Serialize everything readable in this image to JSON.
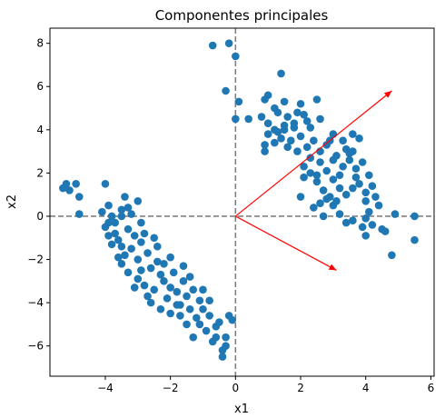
{
  "chart_data": {
    "type": "scatter",
    "title": "Componentes principales",
    "xlabel": "x1",
    "ylabel": "x2",
    "xlim": [
      -5.7,
      6.1
    ],
    "ylim": [
      -7.4,
      8.7
    ],
    "xticks": [
      -4,
      -2,
      0,
      2,
      4,
      6
    ],
    "yticks": [
      -6,
      -4,
      -2,
      0,
      2,
      4,
      6,
      8
    ],
    "grid": false,
    "point_color": "#1f77b4",
    "arrow_color": "#ff0000",
    "reference_line_color": "#808080",
    "reference_lines": {
      "x": 0,
      "y": 0
    },
    "arrows": [
      {
        "from": [
          0,
          0
        ],
        "to": [
          4.8,
          5.8
        ]
      },
      {
        "from": [
          0,
          0
        ],
        "to": [
          3.1,
          -2.5
        ]
      }
    ],
    "points": [
      [
        -5.3,
        1.3
      ],
      [
        -5.2,
        1.5
      ],
      [
        -5.1,
        1.2
      ],
      [
        -4.9,
        1.5
      ],
      [
        -4.8,
        0.9
      ],
      [
        -4.8,
        0.1
      ],
      [
        -4.0,
        1.5
      ],
      [
        -3.9,
        0.5
      ],
      [
        -3.8,
        0.0
      ],
      [
        -3.9,
        -0.3
      ],
      [
        -4.0,
        -0.5
      ],
      [
        -3.7,
        -0.8
      ],
      [
        -3.6,
        -1.1
      ],
      [
        -3.8,
        -1.3
      ],
      [
        -3.5,
        -1.4
      ],
      [
        -3.7,
        -0.3
      ],
      [
        -3.4,
        0.9
      ],
      [
        -3.3,
        0.4
      ],
      [
        -3.2,
        0.1
      ],
      [
        -3.5,
        0.3
      ],
      [
        -3.3,
        -0.6
      ],
      [
        -3.1,
        -0.9
      ],
      [
        -3.4,
        -1.8
      ],
      [
        -3.5,
        -2.2
      ],
      [
        -3.3,
        -2.6
      ],
      [
        -3.0,
        -2.9
      ],
      [
        -3.2,
        -1.5
      ],
      [
        -3.0,
        -2.0
      ],
      [
        -2.9,
        -1.2
      ],
      [
        -2.9,
        -0.3
      ],
      [
        -2.8,
        -0.8
      ],
      [
        -2.7,
        -1.7
      ],
      [
        -2.6,
        -2.4
      ],
      [
        -2.8,
        -3.2
      ],
      [
        -2.5,
        -3.4
      ],
      [
        -2.4,
        -2.1
      ],
      [
        -2.4,
        -1.4
      ],
      [
        -2.3,
        -2.7
      ],
      [
        -2.2,
        -3.0
      ],
      [
        -2.1,
        -3.8
      ],
      [
        -2.0,
        -3.3
      ],
      [
        -1.9,
        -2.6
      ],
      [
        -2.0,
        -1.9
      ],
      [
        -1.8,
        -3.5
      ],
      [
        -1.7,
        -4.1
      ],
      [
        -1.6,
        -3.0
      ],
      [
        -1.6,
        -2.3
      ],
      [
        -1.5,
        -3.7
      ],
      [
        -1.4,
        -4.3
      ],
      [
        -1.3,
        -3.4
      ],
      [
        -1.2,
        -4.7
      ],
      [
        -1.1,
        -3.9
      ],
      [
        -1.0,
        -4.3
      ],
      [
        -1.1,
        -5.0
      ],
      [
        -0.9,
        -5.3
      ],
      [
        -0.8,
        -4.6
      ],
      [
        -0.8,
        -3.9
      ],
      [
        -0.7,
        -5.8
      ],
      [
        -0.6,
        -5.1
      ],
      [
        -0.5,
        -4.9
      ],
      [
        -0.4,
        -6.2
      ],
      [
        -0.4,
        -6.5
      ],
      [
        -0.3,
        -5.6
      ],
      [
        -0.2,
        -4.6
      ],
      [
        -0.1,
        -4.8
      ],
      [
        -2.3,
        -4.3
      ],
      [
        -2.6,
        -4.0
      ],
      [
        -2.0,
        -4.5
      ],
      [
        -1.5,
        -5.0
      ],
      [
        -1.8,
        -4.1
      ],
      [
        -3.1,
        -3.3
      ],
      [
        -2.7,
        -3.7
      ],
      [
        -2.2,
        -2.2
      ],
      [
        -3.6,
        -1.9
      ],
      [
        -3.0,
        0.7
      ],
      [
        -4.1,
        0.2
      ],
      [
        -3.9,
        -0.9
      ],
      [
        -3.5,
        0.0
      ],
      [
        -2.5,
        -1.0
      ],
      [
        -1.3,
        -5.6
      ],
      [
        -0.6,
        -5.6
      ],
      [
        -1.0,
        -3.4
      ],
      [
        -1.7,
        -4.6
      ],
      [
        -2.9,
        -2.5
      ],
      [
        -0.3,
        -6.0
      ],
      [
        -1.4,
        -2.8
      ],
      [
        -0.7,
        7.9
      ],
      [
        -0.2,
        8.0
      ],
      [
        0.0,
        7.4
      ],
      [
        -0.3,
        5.8
      ],
      [
        0.0,
        4.5
      ],
      [
        0.1,
        5.3
      ],
      [
        0.4,
        4.5
      ],
      [
        1.4,
        6.6
      ],
      [
        0.9,
        5.4
      ],
      [
        1.0,
        5.6
      ],
      [
        1.2,
        5.0
      ],
      [
        1.5,
        5.3
      ],
      [
        1.3,
        4.8
      ],
      [
        1.6,
        4.6
      ],
      [
        2.0,
        5.2
      ],
      [
        2.5,
        5.4
      ],
      [
        2.1,
        4.7
      ],
      [
        1.8,
        4.3
      ],
      [
        2.3,
        4.1
      ],
      [
        2.6,
        4.5
      ],
      [
        0.8,
        4.6
      ],
      [
        1.0,
        4.3
      ],
      [
        1.2,
        4.0
      ],
      [
        1.5,
        4.2
      ],
      [
        1.8,
        4.1
      ],
      [
        2.0,
        3.7
      ],
      [
        1.7,
        3.5
      ],
      [
        1.4,
        3.6
      ],
      [
        1.2,
        3.4
      ],
      [
        1.0,
        3.8
      ],
      [
        1.6,
        3.2
      ],
      [
        2.2,
        3.2
      ],
      [
        2.4,
        3.5
      ],
      [
        2.6,
        3.0
      ],
      [
        2.8,
        3.3
      ],
      [
        3.0,
        3.8
      ],
      [
        3.1,
        2.8
      ],
      [
        3.3,
        3.5
      ],
      [
        3.4,
        3.1
      ],
      [
        3.6,
        3.0
      ],
      [
        3.6,
        3.8
      ],
      [
        3.8,
        3.6
      ],
      [
        3.9,
        2.5
      ],
      [
        3.7,
        2.2
      ],
      [
        3.5,
        2.6
      ],
      [
        3.3,
        2.3
      ],
      [
        3.2,
        1.9
      ],
      [
        3.0,
        1.7
      ],
      [
        2.8,
        2.1
      ],
      [
        2.6,
        2.5
      ],
      [
        2.3,
        2.7
      ],
      [
        2.1,
        2.3
      ],
      [
        2.1,
        1.8
      ],
      [
        2.5,
        1.6
      ],
      [
        2.7,
        1.2
      ],
      [
        2.9,
        0.9
      ],
      [
        3.1,
        0.7
      ],
      [
        3.4,
        1.0
      ],
      [
        3.6,
        1.3
      ],
      [
        3.8,
        1.5
      ],
      [
        4.0,
        1.1
      ],
      [
        4.1,
        1.9
      ],
      [
        4.2,
        1.4
      ],
      [
        4.3,
        0.9
      ],
      [
        4.4,
        0.5
      ],
      [
        4.1,
        0.2
      ],
      [
        4.0,
        -0.1
      ],
      [
        3.9,
        -0.5
      ],
      [
        3.6,
        -0.2
      ],
      [
        3.4,
        -0.3
      ],
      [
        3.2,
        0.1
      ],
      [
        3.0,
        0.5
      ],
      [
        2.8,
        0.8
      ],
      [
        2.6,
        0.6
      ],
      [
        2.4,
        0.4
      ],
      [
        2.0,
        0.9
      ],
      [
        2.7,
        0.0
      ],
      [
        4.2,
        -0.4
      ],
      [
        4.5,
        -0.6
      ],
      [
        4.6,
        -0.7
      ],
      [
        4.8,
        -1.8
      ],
      [
        5.5,
        0.0
      ],
      [
        5.5,
        -1.1
      ],
      [
        4.0,
        -0.9
      ],
      [
        4.9,
        0.1
      ],
      [
        0.9,
        3.0
      ],
      [
        0.9,
        3.3
      ],
      [
        1.9,
        3.0
      ],
      [
        2.3,
        2.0
      ],
      [
        3.7,
        1.8
      ],
      [
        3.5,
        2.9
      ],
      [
        2.9,
        3.5
      ],
      [
        1.3,
        3.9
      ],
      [
        4.0,
        0.7
      ],
      [
        3.2,
        1.3
      ],
      [
        2.5,
        1.9
      ],
      [
        3.0,
        2.6
      ],
      [
        1.9,
        4.8
      ],
      [
        1.5,
        4.0
      ],
      [
        2.2,
        4.4
      ]
    ]
  }
}
